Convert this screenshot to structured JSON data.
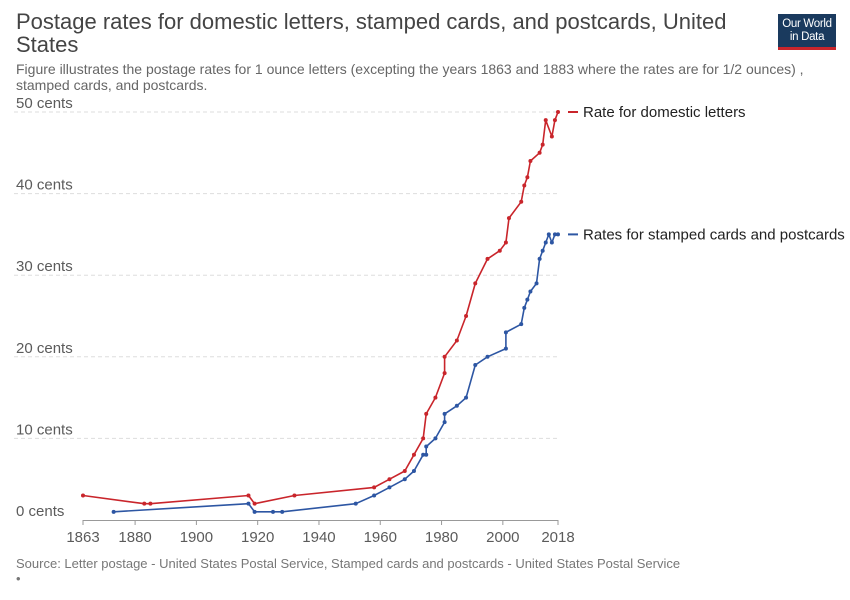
{
  "header": {
    "title": "Postage rates for domestic letters, stamped cards, and postcards, United States",
    "subtitle": "Figure illustrates the postage rates for 1 ounce letters (excepting the years 1863 and 1883 where the rates are for 1/2 ounces) , stamped cards, and postcards.",
    "logo_line1": "Our World",
    "logo_line2": "in Data"
  },
  "footer": {
    "source": "Source: Letter postage - United States Postal Service, Stamped cards and postcards - United States Postal Service",
    "note": "•"
  },
  "colors": {
    "letters": "#c9252b",
    "cards": "#2d56a3",
    "grid": "#dddddd",
    "axis": "#999999"
  },
  "chart_data": {
    "type": "line",
    "xlim": [
      1863,
      2018
    ],
    "ylim": [
      0,
      50
    ],
    "x_ticks": [
      1863,
      1880,
      1900,
      1920,
      1940,
      1960,
      1980,
      2000,
      2018
    ],
    "y_ticks": [
      {
        "value": 0,
        "label": "0 cents"
      },
      {
        "value": 10,
        "label": "10 cents"
      },
      {
        "value": 20,
        "label": "20 cents"
      },
      {
        "value": 30,
        "label": "30 cents"
      },
      {
        "value": 40,
        "label": "40 cents"
      },
      {
        "value": 50,
        "label": "50 cents"
      }
    ],
    "grid": true,
    "legend_placement": "right, at line ends",
    "series": [
      {
        "name": "Rate for domestic letters",
        "color": "#c9252b",
        "points": [
          [
            1863,
            3
          ],
          [
            1883,
            2
          ],
          [
            1885,
            2
          ],
          [
            1917,
            3
          ],
          [
            1919,
            2
          ],
          [
            1932,
            3
          ],
          [
            1958,
            4
          ],
          [
            1963,
            5
          ],
          [
            1968,
            6
          ],
          [
            1971,
            8
          ],
          [
            1974,
            10
          ],
          [
            1975,
            13
          ],
          [
            1978,
            15
          ],
          [
            1981,
            18
          ],
          [
            1981,
            20
          ],
          [
            1985,
            22
          ],
          [
            1988,
            25
          ],
          [
            1991,
            29
          ],
          [
            1995,
            32
          ],
          [
            1999,
            33
          ],
          [
            2001,
            34
          ],
          [
            2002,
            37
          ],
          [
            2006,
            39
          ],
          [
            2007,
            41
          ],
          [
            2008,
            42
          ],
          [
            2009,
            44
          ],
          [
            2012,
            45
          ],
          [
            2013,
            46
          ],
          [
            2014,
            49
          ],
          [
            2016,
            47
          ],
          [
            2017,
            49
          ],
          [
            2018,
            50
          ]
        ]
      },
      {
        "name": "Rates for stamped cards and postcards",
        "color": "#2d56a3",
        "points": [
          [
            1873,
            1
          ],
          [
            1917,
            2
          ],
          [
            1919,
            1
          ],
          [
            1925,
            1
          ],
          [
            1928,
            1
          ],
          [
            1952,
            2
          ],
          [
            1958,
            3
          ],
          [
            1963,
            4
          ],
          [
            1968,
            5
          ],
          [
            1971,
            6
          ],
          [
            1974,
            8
          ],
          [
            1975,
            8
          ],
          [
            1975,
            9
          ],
          [
            1978,
            10
          ],
          [
            1981,
            12
          ],
          [
            1981,
            13
          ],
          [
            1985,
            14
          ],
          [
            1988,
            15
          ],
          [
            1991,
            19
          ],
          [
            1995,
            20
          ],
          [
            2001,
            21
          ],
          [
            2001,
            23
          ],
          [
            2006,
            24
          ],
          [
            2007,
            26
          ],
          [
            2008,
            27
          ],
          [
            2009,
            28
          ],
          [
            2011,
            29
          ],
          [
            2012,
            32
          ],
          [
            2013,
            33
          ],
          [
            2014,
            34
          ],
          [
            2015,
            35
          ],
          [
            2016,
            34
          ],
          [
            2017,
            35
          ],
          [
            2018,
            35
          ]
        ]
      }
    ]
  }
}
